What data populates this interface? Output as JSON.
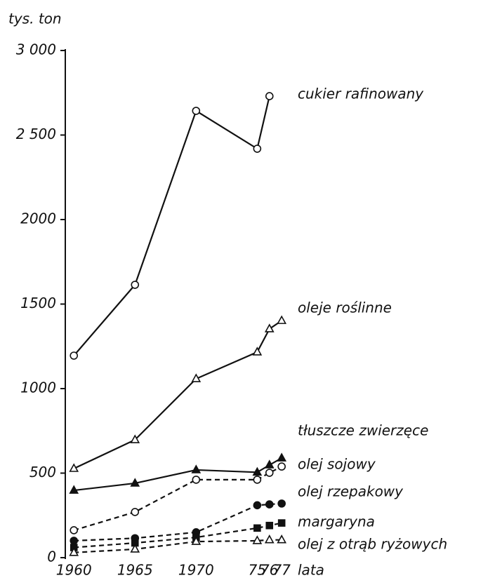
{
  "chart_data": {
    "type": "line",
    "ylabel": "tys. ton",
    "xlabel": "lata",
    "xlim": [
      1957,
      1979
    ],
    "xticks": [
      1960,
      1965,
      1970,
      {
        "value": 1975,
        "label": "75"
      },
      {
        "value": 1976,
        "label": "76"
      },
      {
        "value": 1977,
        "label": "77"
      }
    ],
    "ylim": [
      0,
      3000
    ],
    "yticks": [
      0,
      500,
      1000,
      1500,
      2000,
      {
        "value": 2500,
        "label": "2 500"
      },
      {
        "value": 3000,
        "label": "3 000"
      }
    ],
    "series": [
      {
        "name": "cukier rafinowany",
        "color": "#111",
        "marker": "circle-open",
        "dashed": false,
        "x": [
          1960,
          1965,
          1970,
          1975,
          1976
        ],
        "values": [
          1195,
          1614,
          2643,
          2419,
          2730
        ]
      },
      {
        "name": "oleje roślinne",
        "color": "#111",
        "marker": "triangle-open",
        "dashed": false,
        "x": [
          1960,
          1965,
          1970,
          1975,
          1976,
          1977
        ],
        "values": [
          527,
          697,
          1058,
          1216,
          1353,
          1402
        ]
      },
      {
        "name": "tłuszcze zwierzęce",
        "color": "#111",
        "marker": "triangle-filled",
        "dashed": false,
        "x": [
          1960,
          1965,
          1970,
          1975,
          1976,
          1977
        ],
        "values": [
          398,
          440,
          519,
          505,
          548,
          589
        ]
      },
      {
        "name": "olej sojowy",
        "color": "#111",
        "marker": "circle-open",
        "dashed": true,
        "x": [
          1960,
          1965,
          1970,
          1975,
          1976,
          1977
        ],
        "values": [
          162,
          270,
          461,
          461,
          502,
          539
        ]
      },
      {
        "name": "olej rzepakowy",
        "color": "#111",
        "marker": "circle-filled",
        "dashed": true,
        "x": [
          1960,
          1965,
          1970,
          1975,
          1976,
          1977
        ],
        "values": [
          100,
          115,
          150,
          310,
          315,
          320
        ]
      },
      {
        "name": "margaryna",
        "color": "#111",
        "marker": "square-filled",
        "dashed": true,
        "x": [
          1960,
          1965,
          1970,
          1975,
          1976,
          1977
        ],
        "values": [
          60,
          87,
          120,
          175,
          190,
          205
        ]
      },
      {
        "name": "olej z otrąb ryżowych",
        "color": "#111",
        "marker": "triangle-open",
        "dashed": true,
        "x": [
          1960,
          1965,
          1970,
          1975,
          1976,
          1977
        ],
        "values": [
          30,
          50,
          95,
          100,
          105,
          105
        ]
      }
    ]
  }
}
